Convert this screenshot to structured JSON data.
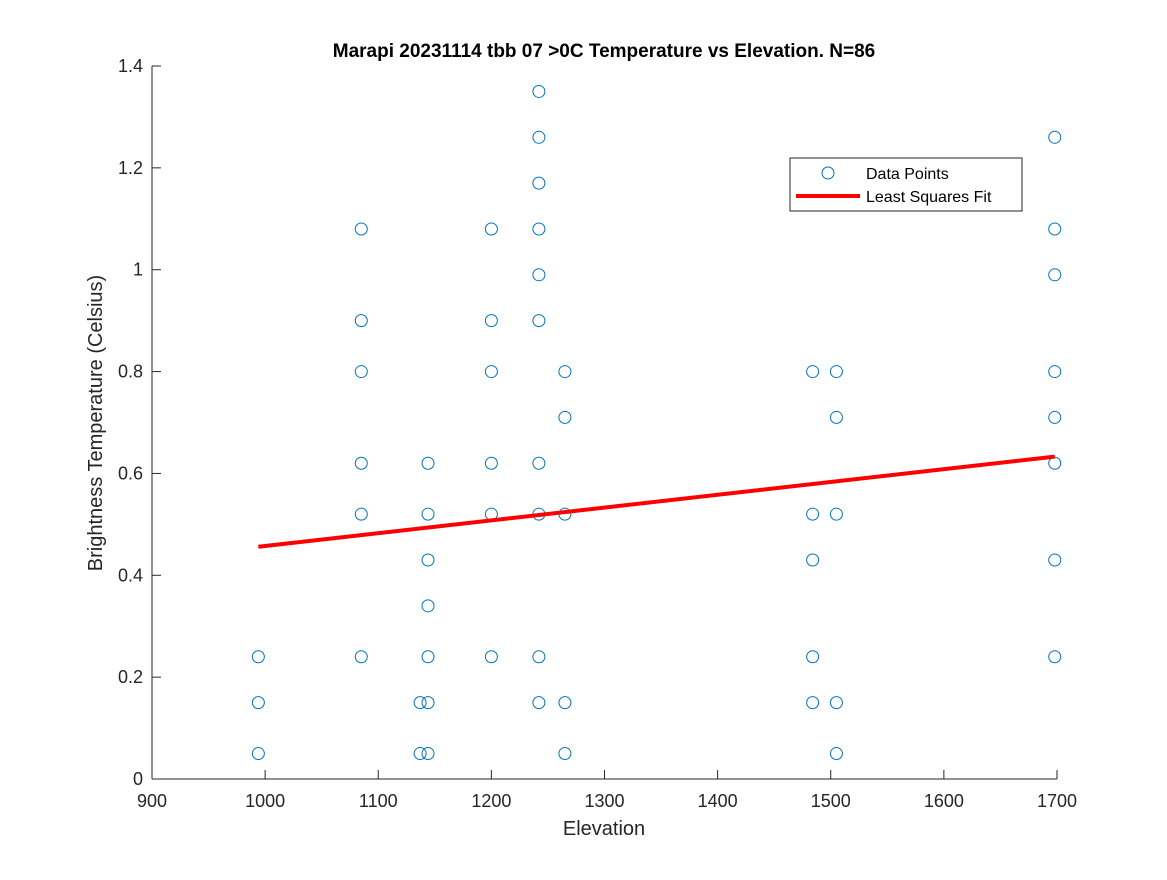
{
  "chart_data": {
    "type": "scatter",
    "title": "Marapi 20231114 tbb 07 >0C Temperature vs Elevation. N=86",
    "xlabel": "Elevation",
    "ylabel": "Brightness Temperature (Celsius)",
    "xlim": [
      900,
      1700
    ],
    "ylim": [
      0,
      1.4
    ],
    "xticks": [
      900,
      1000,
      1100,
      1200,
      1300,
      1400,
      1500,
      1600,
      1700
    ],
    "xtick_labels": [
      "900",
      "1000",
      "1100",
      "1200",
      "1300",
      "1400",
      "1500",
      "1600",
      "1700"
    ],
    "yticks": [
      0,
      0.2,
      0.4,
      0.6,
      0.8,
      1.0,
      1.2,
      1.4
    ],
    "ytick_labels": [
      "0",
      "0.2",
      "0.4",
      "0.6",
      "0.8",
      "1",
      "1.2",
      "1.4"
    ],
    "grid": false,
    "legend_position": "top-right",
    "colors": {
      "points": "#0072BD",
      "fit": "#FF0000",
      "axis": "#262626"
    },
    "series": [
      {
        "name": "Data Points",
        "type": "scatter",
        "points": [
          [
            994,
            0.05
          ],
          [
            994,
            0.15
          ],
          [
            994,
            0.24
          ],
          [
            1085,
            0.24
          ],
          [
            1085,
            0.52
          ],
          [
            1085,
            0.62
          ],
          [
            1085,
            0.8
          ],
          [
            1085,
            0.9
          ],
          [
            1085,
            1.08
          ],
          [
            1137,
            0.05
          ],
          [
            1137,
            0.15
          ],
          [
            1144,
            0.05
          ],
          [
            1144,
            0.15
          ],
          [
            1144,
            0.24
          ],
          [
            1144,
            0.34
          ],
          [
            1144,
            0.43
          ],
          [
            1144,
            0.52
          ],
          [
            1144,
            0.62
          ],
          [
            1200,
            0.24
          ],
          [
            1200,
            0.52
          ],
          [
            1200,
            0.62
          ],
          [
            1200,
            0.8
          ],
          [
            1200,
            0.9
          ],
          [
            1200,
            1.08
          ],
          [
            1242,
            0.15
          ],
          [
            1242,
            0.24
          ],
          [
            1242,
            0.52
          ],
          [
            1242,
            0.62
          ],
          [
            1242,
            0.9
          ],
          [
            1242,
            0.99
          ],
          [
            1242,
            1.08
          ],
          [
            1242,
            1.17
          ],
          [
            1242,
            1.26
          ],
          [
            1242,
            1.35
          ],
          [
            1265,
            0.05
          ],
          [
            1265,
            0.15
          ],
          [
            1265,
            0.52
          ],
          [
            1265,
            0.71
          ],
          [
            1265,
            0.8
          ],
          [
            1484,
            0.15
          ],
          [
            1484,
            0.24
          ],
          [
            1484,
            0.43
          ],
          [
            1484,
            0.52
          ],
          [
            1484,
            0.8
          ],
          [
            1505,
            0.05
          ],
          [
            1505,
            0.15
          ],
          [
            1505,
            0.52
          ],
          [
            1505,
            0.71
          ],
          [
            1505,
            0.8
          ],
          [
            1698,
            0.24
          ],
          [
            1698,
            0.43
          ],
          [
            1698,
            0.62
          ],
          [
            1698,
            0.71
          ],
          [
            1698,
            0.8
          ],
          [
            1698,
            0.99
          ],
          [
            1698,
            1.08
          ],
          [
            1698,
            1.26
          ]
        ]
      },
      {
        "name": "Least Squares Fit",
        "type": "line",
        "points": [
          [
            994,
            0.456
          ],
          [
            1698,
            0.633
          ]
        ]
      }
    ]
  }
}
